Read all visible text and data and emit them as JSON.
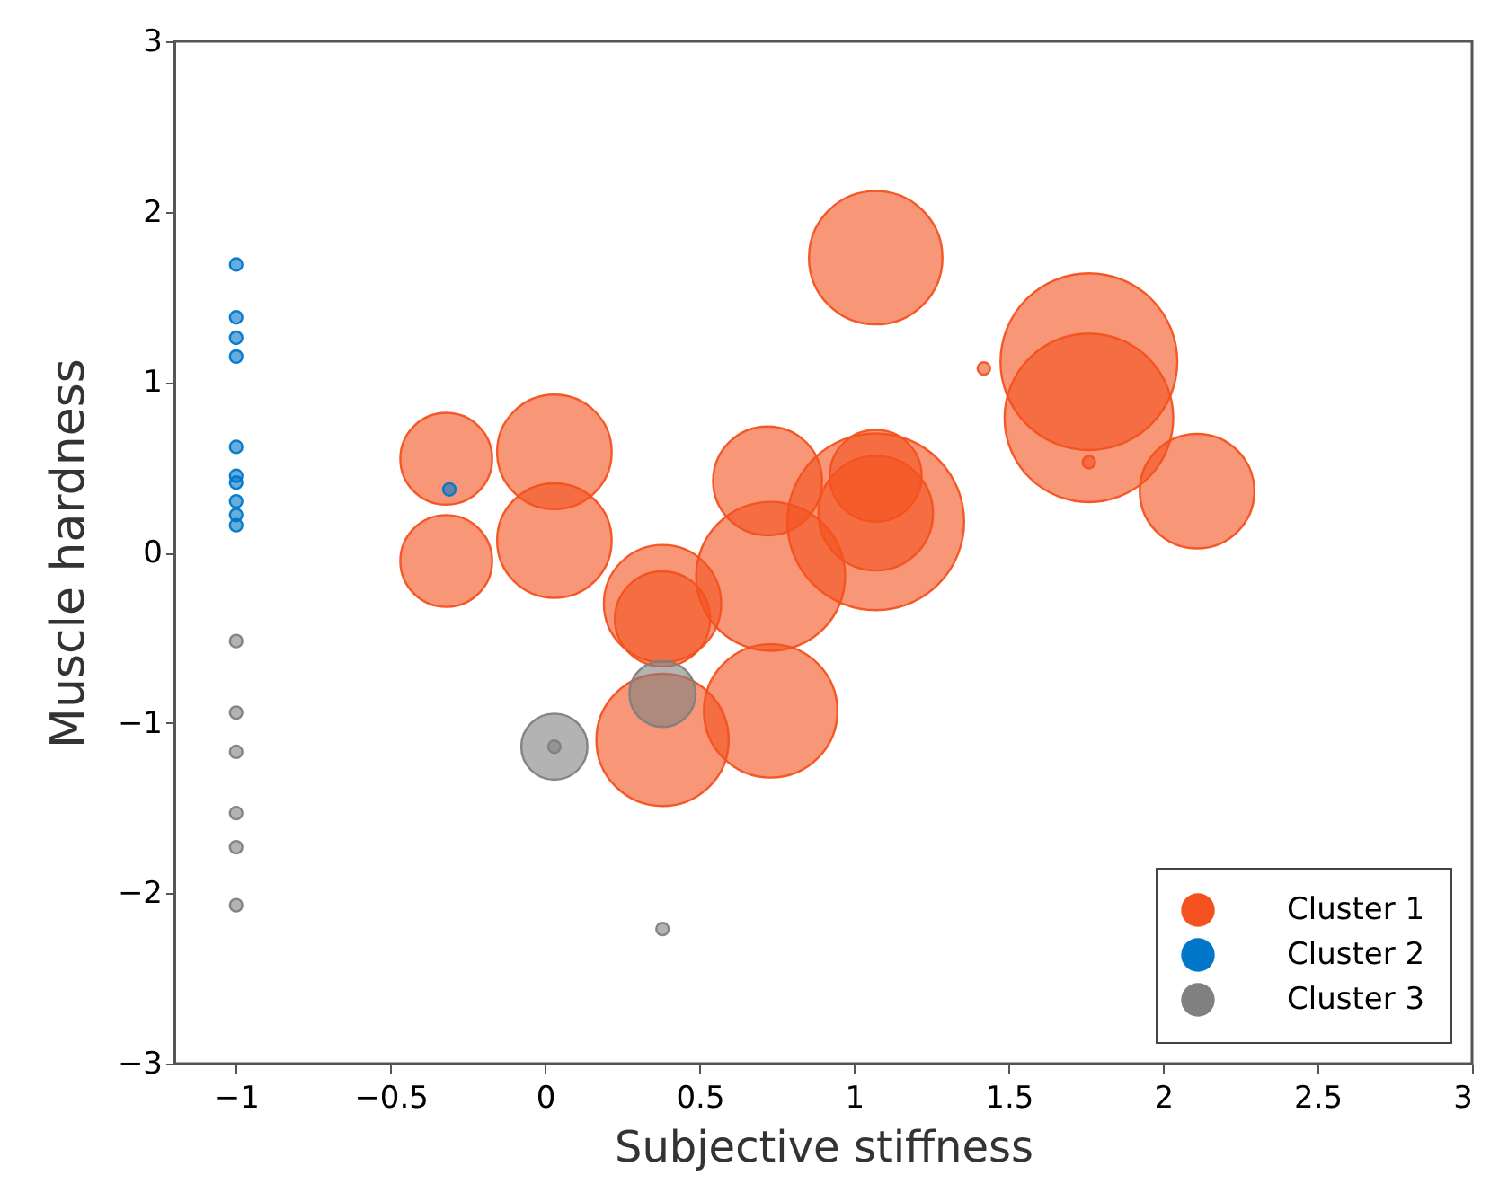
{
  "chart_data": {
    "type": "bubble",
    "xlabel": "Subjective stiffness",
    "ylabel": "Muscle hardness",
    "xlim": [
      -1.2,
      3
    ],
    "ylim": [
      -3,
      3
    ],
    "xticks": [
      -1,
      -0.5,
      0,
      0.5,
      1,
      1.5,
      2,
      2.5,
      3
    ],
    "yticks": [
      -3,
      -2,
      -1,
      0,
      1,
      2,
      3
    ],
    "legend": "bottom right",
    "series": [
      {
        "name": "Cluster 1",
        "color": "#f4511e",
        "x": [
          -0.32,
          0.03,
          -0.32,
          0.03,
          1.07,
          0.72,
          1.07,
          1.07,
          1.07,
          1.76,
          1.76,
          1.42,
          1.76,
          2.11,
          0.38,
          0.38,
          0.38,
          0.73,
          0.73
        ],
        "values": [
          0.55,
          0.59,
          -0.05,
          0.07,
          1.73,
          0.42,
          0.45,
          0.23,
          0.18,
          1.12,
          0.79,
          1.08,
          0.53,
          0.36,
          -0.39,
          -0.3,
          -1.1,
          -0.93,
          -0.14
        ],
        "sizes": [
          0.27,
          0.42,
          0.27,
          0.42,
          0.57,
          0.38,
          0.27,
          0.42,
          1,
          1,
          0.91,
          0.005,
          0.005,
          0.42,
          0.29,
          0.44,
          0.56,
          0.57,
          0.71
        ]
      },
      {
        "name": "Cluster 2",
        "color": "#0077c8",
        "x": [
          -1,
          -1,
          -1,
          -1,
          -1,
          -1,
          -1,
          -1,
          -1,
          -1,
          -0.31
        ],
        "values": [
          1.69,
          1.38,
          1.26,
          1.15,
          0.62,
          0.45,
          0.41,
          0.3,
          0.22,
          0.16,
          0.37
        ],
        "sizes": [
          0.005,
          0.005,
          0.005,
          0.005,
          0.005,
          0.005,
          0.005,
          0.005,
          0.005,
          0.005,
          0.005
        ]
      },
      {
        "name": "Cluster 3",
        "color": "#808080",
        "x": [
          -1,
          -1,
          -1,
          -1,
          -1,
          -1,
          0.38,
          0.03,
          0.03,
          0.38
        ],
        "values": [
          -0.52,
          -0.94,
          -1.17,
          -1.53,
          -1.73,
          -2.07,
          -2.21,
          -1.14,
          -1.14,
          -0.83
        ],
        "sizes": [
          0.005,
          0.005,
          0.005,
          0.005,
          0.005,
          0.005,
          0.005,
          0.14,
          0.005,
          0.14
        ]
      }
    ]
  }
}
